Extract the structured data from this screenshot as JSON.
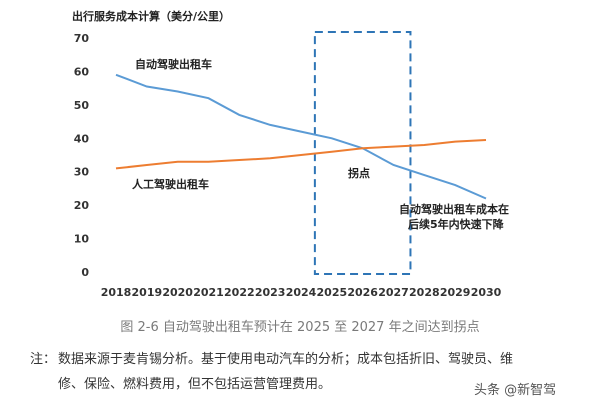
{
  "chart_data": {
    "type": "line",
    "title": "",
    "ylabel": "出行服务成本计算（美分/公里）",
    "xlabel": "",
    "x": [
      "2018",
      "2019",
      "2020",
      "2021",
      "2022",
      "2023",
      "2024",
      "2025",
      "2026",
      "2027",
      "2028",
      "2029",
      "2030"
    ],
    "ylim": [
      0,
      70
    ],
    "yticks": [
      0,
      10,
      20,
      30,
      40,
      50,
      60,
      70
    ],
    "grid": false,
    "series": [
      {
        "name": "自动驾驶出租车",
        "color": "#5b9bd5",
        "values": [
          59,
          55.5,
          54,
          52,
          47,
          44,
          42,
          40,
          37,
          32,
          29,
          26,
          22
        ]
      },
      {
        "name": "人工驾驶出租车",
        "color": "#ed7d31",
        "values": [
          31,
          32,
          33,
          33,
          33.5,
          34,
          35,
          36,
          37,
          37.5,
          38,
          39,
          39.5
        ]
      }
    ],
    "highlight_range": [
      "2025",
      "2027"
    ],
    "highlight_color": "#2e75b6",
    "annotations": {
      "inflection": "拐点",
      "forecast_line1": "自动驾驶出租车成本在",
      "forecast_line2": "后续5年内快速下降"
    }
  },
  "caption": "图 2-6  自动驾驶出租车预计在 2025 至 2027 年之间达到拐点",
  "note": {
    "prefix": "注：",
    "line1": "数据来源于麦肯锡分析。基于使用电动汽车的分析；成本包括折旧、驾驶员、维",
    "line2": "修、保险、燃料费用，但不包括运营管理费用。"
  },
  "watermark": "头条 @新智驾"
}
